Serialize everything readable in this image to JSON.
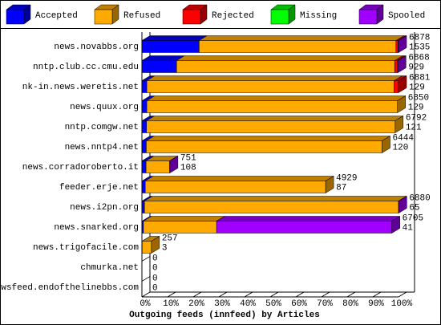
{
  "chart_data": {
    "type": "stacked-bar-3d",
    "x_label": "Outgoing feeds (innfeed) by Articles",
    "categories": [
      "news.novabbs.org",
      "nntp.club.cc.cmu.edu",
      "nk-in.news.weretis.net",
      "news.quux.org",
      "nntp.comgw.net",
      "news.nntp4.net",
      "news.corradoroberto.it",
      "feeder.erje.net",
      "news.i2pn.org",
      "news.snarked.org",
      "news.trigofacile.com",
      "chmurka.net",
      "newsfeed.endofthelinebbs.com"
    ],
    "series": [
      {
        "name": "Accepted",
        "color": "#0000ff",
        "values": [
          22.3,
          13.5,
          1.9,
          1.9,
          1.8,
          1.7,
          1.6,
          1.3,
          1.0,
          0.6,
          0.1,
          0,
          0
        ]
      },
      {
        "name": "Refused",
        "color": "#ffaa00",
        "values": [
          76.7,
          85.0,
          96.4,
          97.7,
          96.9,
          91.9,
          9.2,
          70.3,
          99.0,
          28.5,
          3.6,
          0,
          0
        ]
      },
      {
        "name": "Rejected",
        "color": "#ff0000",
        "values": [
          0.8,
          1.0,
          1.7,
          0,
          0,
          0,
          0,
          0,
          0,
          0,
          0,
          0,
          0
        ]
      },
      {
        "name": "Missing",
        "color": "#00ff00",
        "values": [
          0,
          0,
          0,
          0,
          0,
          0,
          0,
          0,
          0,
          0,
          0,
          0,
          0
        ]
      },
      {
        "name": "Spooled",
        "color": "#a000ff",
        "values": [
          0.2,
          0.3,
          0,
          0,
          0,
          0,
          0.1,
          0,
          0.1,
          68.3,
          0,
          0,
          0
        ]
      }
    ],
    "offered": [
      6878,
      6868,
      6881,
      6850,
      6792,
      6444,
      751,
      4929,
      6880,
      6705,
      257,
      0,
      0
    ],
    "accepted": [
      1535,
      929,
      129,
      129,
      121,
      120,
      108,
      87,
      65,
      41,
      3,
      0,
      0
    ],
    "xlim": [
      0,
      100
    ],
    "xticks": [
      {
        "value": 0,
        "label": "0%"
      },
      {
        "value": 10,
        "label": "10%"
      },
      {
        "value": 20,
        "label": "20%"
      },
      {
        "value": 30,
        "label": "30%"
      },
      {
        "value": 40,
        "label": "40%"
      },
      {
        "value": 50,
        "label": "50%"
      },
      {
        "value": 60,
        "label": "60%"
      },
      {
        "value": 70,
        "label": "70%"
      },
      {
        "value": 80,
        "label": "80%"
      },
      {
        "value": 90,
        "label": "90%"
      },
      {
        "value": 100,
        "label": "100%"
      }
    ]
  }
}
